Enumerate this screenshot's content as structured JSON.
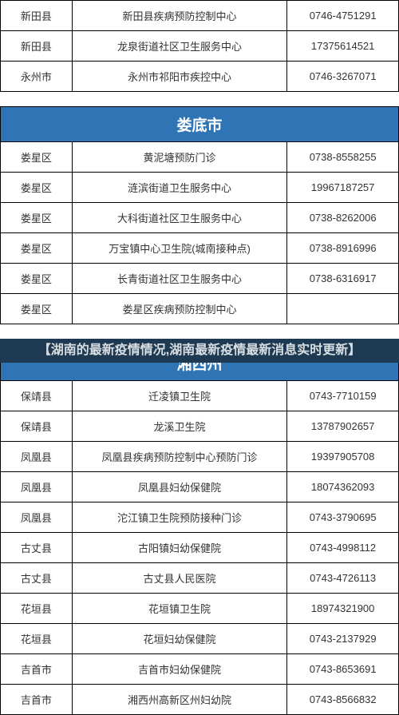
{
  "colors": {
    "border": "#000000",
    "header_bg": "#2f75b5",
    "header_text": "#ffffff",
    "banner_bg": "#1e3a52",
    "banner_text": "#d9dee3",
    "cell_text": "#333333"
  },
  "layout": {
    "col_widths": [
      "18%",
      "54%",
      "28%"
    ],
    "border_width": 1,
    "font_size_cell": 13,
    "font_size_header": 19
  },
  "top_rows": [
    {
      "district": "新田县",
      "facility": "新田县疾病预防控制中心",
      "phone": "0746-4751291"
    },
    {
      "district": "新田县",
      "facility": "龙泉街道社区卫生服务中心",
      "phone": "17375614521"
    },
    {
      "district": "永州市",
      "facility": "永州市祁阳市疾控中心",
      "phone": "0746-3267071"
    }
  ],
  "section2": {
    "title": "娄底市",
    "rows": [
      {
        "district": "娄星区",
        "facility": "黄泥塘预防门诊",
        "phone": "0738-8558255"
      },
      {
        "district": "娄星区",
        "facility": "涟滨街道卫生服务中心",
        "phone": "19967187257"
      },
      {
        "district": "娄星区",
        "facility": "大科街道社区卫生服务中心",
        "phone": "0738-8262006"
      },
      {
        "district": "娄星区",
        "facility": "万宝镇中心卫生院(城南接种点)",
        "phone": "0738-8916996"
      },
      {
        "district": "娄星区",
        "facility": "长青街道社区卫生服务中心",
        "phone": "0738-6316917"
      },
      {
        "district": "娄星区",
        "facility": "娄星区疾病预防控制中心",
        "phone": ""
      }
    ]
  },
  "banner_text": "【湖南的最新疫情情况,湖南最新疫情最新消息实时更新】",
  "section3": {
    "title": "湘西州",
    "rows": [
      {
        "district": "保靖县",
        "facility": "迁凌镇卫生院",
        "phone": "0743-7710159"
      },
      {
        "district": "保靖县",
        "facility": "龙溪卫生院",
        "phone": "13787902657"
      },
      {
        "district": "凤凰县",
        "facility": "凤凰县疾病预防控制中心预防门诊",
        "phone": "19397905708"
      },
      {
        "district": "凤凰县",
        "facility": "凤凰县妇幼保健院",
        "phone": "18074362093"
      },
      {
        "district": "凤凰县",
        "facility": "沱江镇卫生院预防接种门诊",
        "phone": "0743-3790695"
      },
      {
        "district": "古丈县",
        "facility": "古阳镇妇幼保健院",
        "phone": "0743-4998112"
      },
      {
        "district": "古丈县",
        "facility": "古丈县人民医院",
        "phone": "0743-4726113"
      },
      {
        "district": "花垣县",
        "facility": "花垣镇卫生院",
        "phone": "18974321900"
      },
      {
        "district": "花垣县",
        "facility": "花垣妇幼保健院",
        "phone": "0743-2137929"
      },
      {
        "district": "吉首市",
        "facility": "吉首市妇幼保健院",
        "phone": "0743-8653691"
      },
      {
        "district": "吉首市",
        "facility": "湘西州高新区州妇幼院",
        "phone": "0743-8566832"
      }
    ]
  }
}
